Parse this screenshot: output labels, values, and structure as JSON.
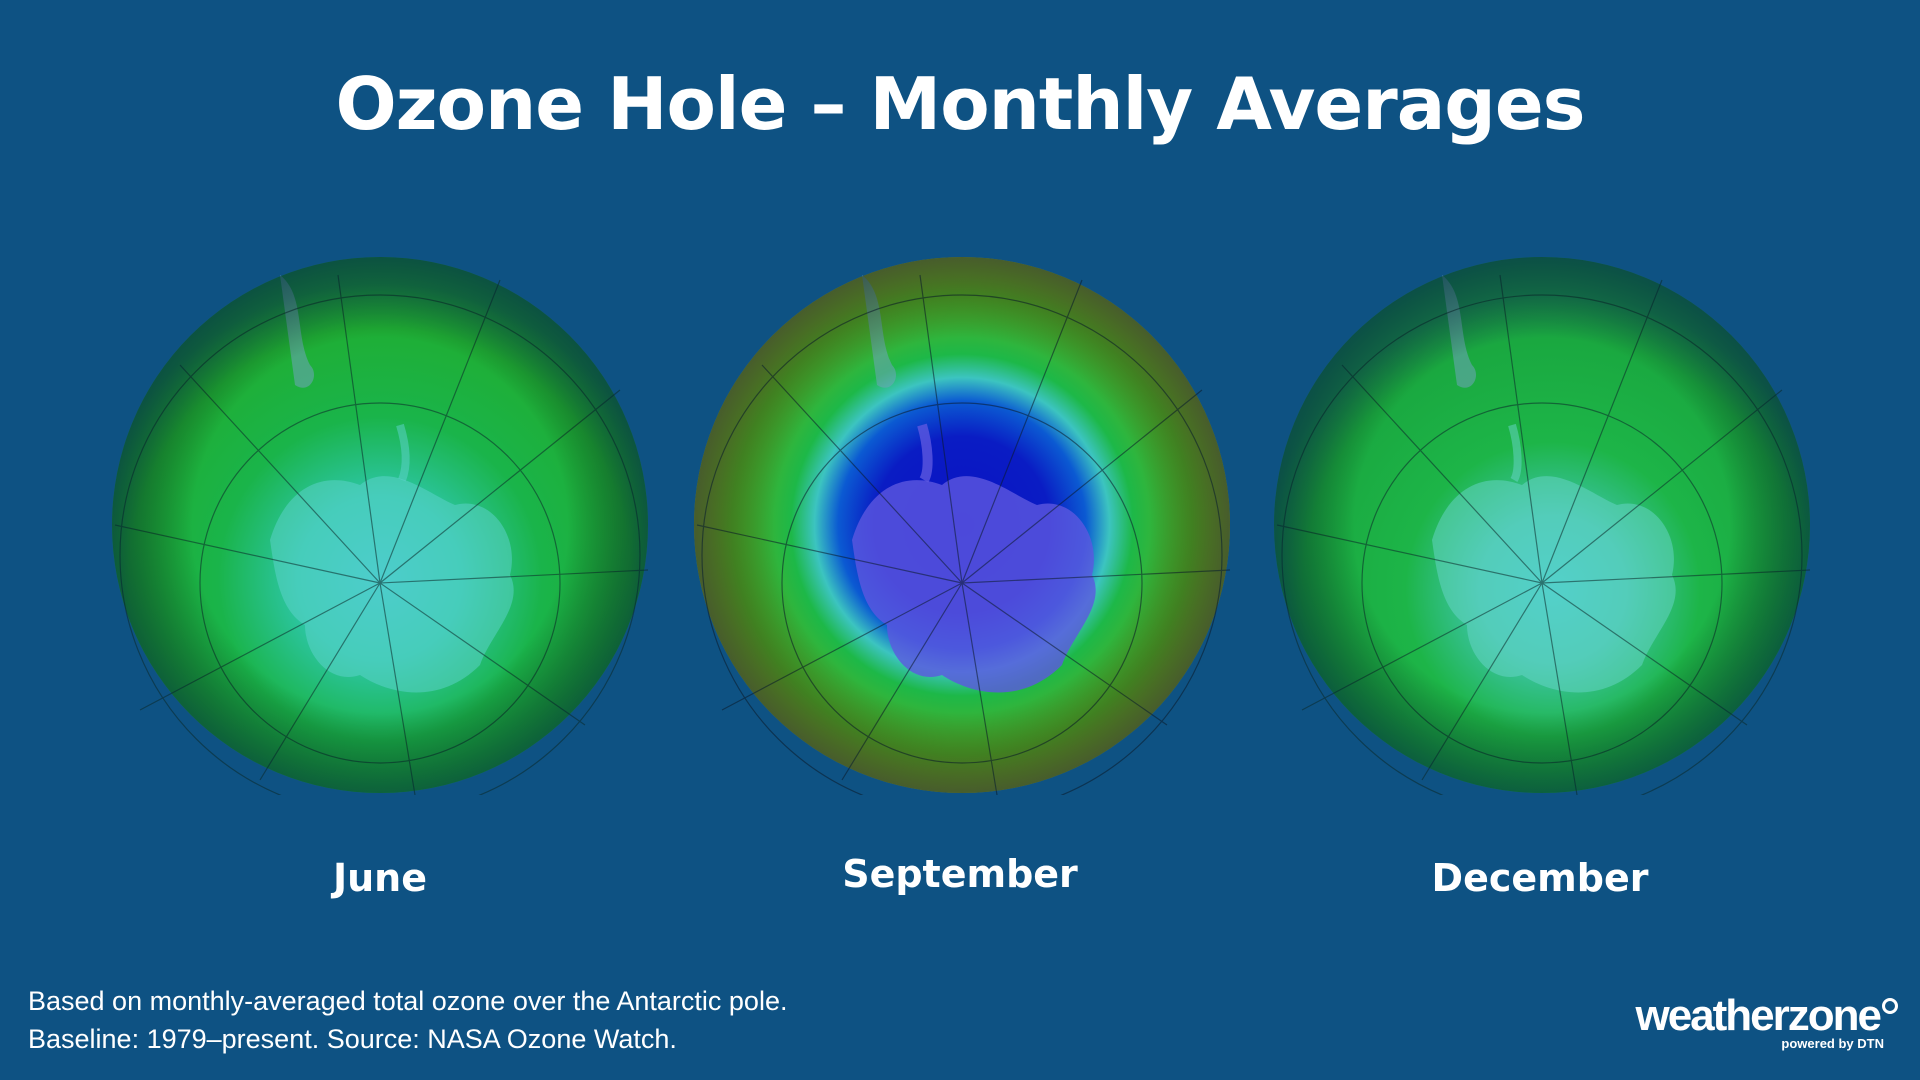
{
  "title": "Ozone Hole – Monthly Averages",
  "panels": [
    {
      "month": "June",
      "hole": "none"
    },
    {
      "month": "September",
      "hole": "large"
    },
    {
      "month": "December",
      "hole": "none"
    }
  ],
  "footnote": {
    "line1": "Based on monthly-averaged total ozone over the Antarctic pole.",
    "line2": "Baseline: 1979–present. Source: NASA Ozone Watch."
  },
  "logo": {
    "name": "weatherzone",
    "tagline": "powered by DTN"
  },
  "colors": {
    "background": "#0e5283",
    "ozone_low": "#0a1fc8",
    "ozone_mid": "#1fb24a",
    "ozone_high": "#b8a81a",
    "landmass": "#4a7fa0"
  }
}
